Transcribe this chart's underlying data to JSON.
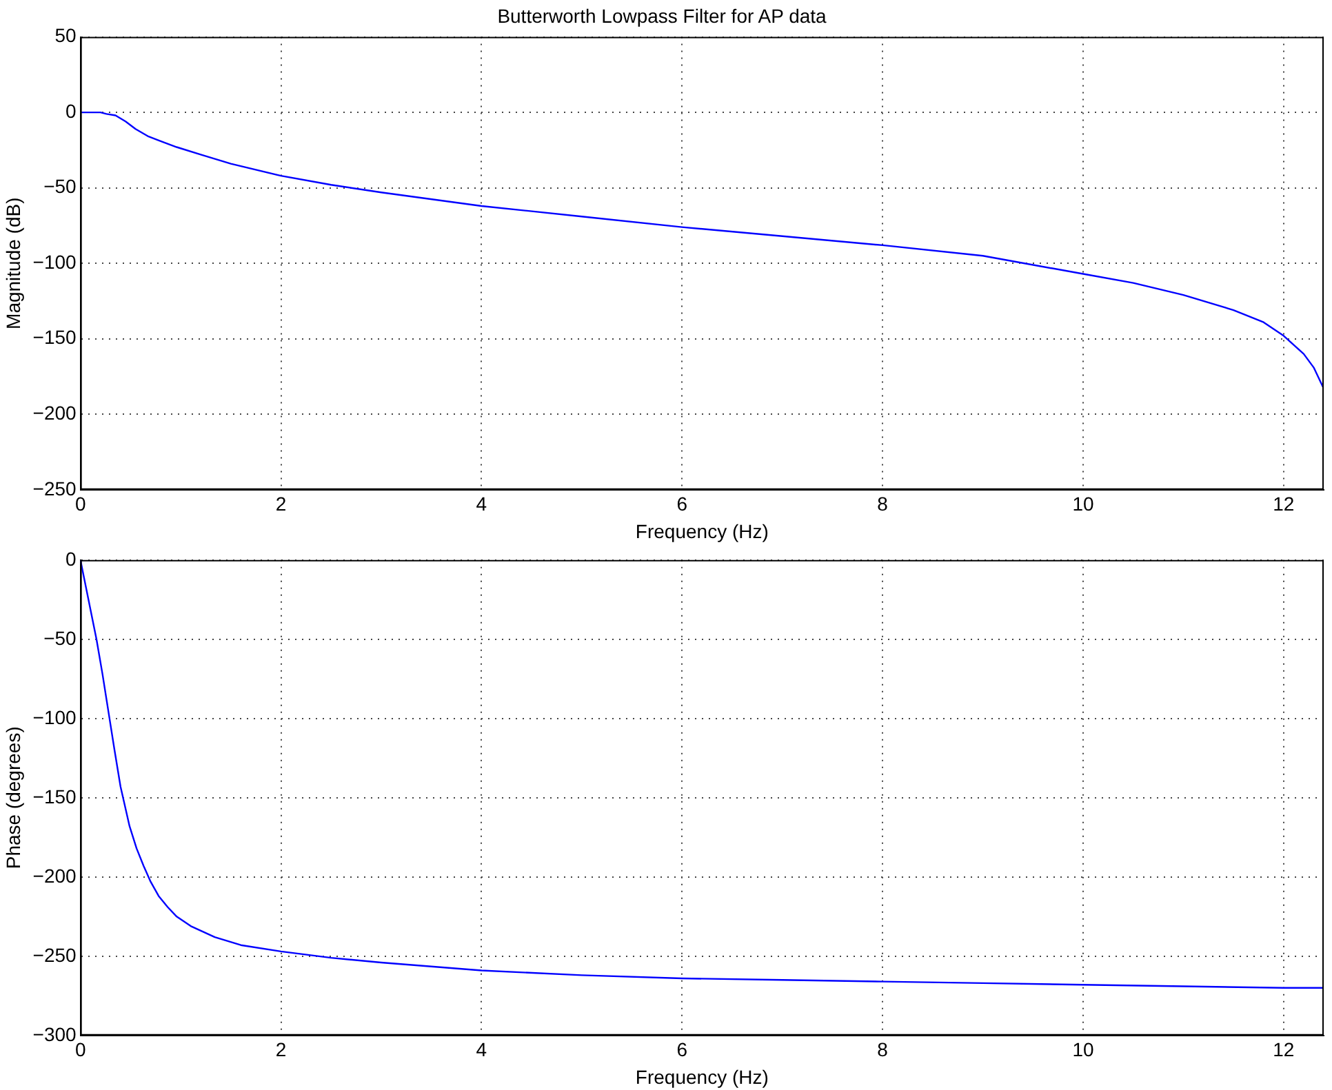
{
  "chart_data": [
    {
      "type": "line",
      "title": "Butterworth Lowpass Filter for AP data",
      "xlabel": "Frequency (Hz)",
      "ylabel": "Magnitude (dB)",
      "xlim": [
        0,
        12.4
      ],
      "xticks": [
        0,
        2,
        4,
        6,
        8,
        10,
        12
      ],
      "ylim": [
        -250,
        50
      ],
      "yticks": [
        -250,
        -200,
        -150,
        -100,
        -50,
        0,
        50
      ],
      "grid": true,
      "legend": false,
      "marker": "none",
      "line_style": "solid",
      "series": [
        {
          "color": "#0000ff",
          "x": [
            0,
            0.1,
            0.2,
            0.26,
            0.35,
            0.45,
            0.55,
            0.68,
            0.8,
            0.96,
            1.2,
            1.5,
            2,
            2.5,
            3,
            4,
            5,
            6,
            7,
            8,
            9,
            10,
            10.5,
            11,
            11.5,
            11.8,
            12,
            12.2,
            12.3,
            12.4
          ],
          "values": [
            0,
            0,
            0,
            -1,
            -2,
            -6,
            -11,
            -16,
            -19,
            -23,
            -28,
            -34,
            -42,
            -48,
            -53,
            -62,
            -69,
            -76,
            -82,
            -88,
            -95,
            -107,
            -113,
            -121,
            -131,
            -139,
            -148,
            -160,
            -169,
            -183
          ]
        }
      ]
    },
    {
      "type": "line",
      "xlabel": "Frequency (Hz)",
      "ylabel": "Phase (degrees)",
      "xlim": [
        0,
        12.4
      ],
      "xticks": [
        0,
        2,
        4,
        6,
        8,
        10,
        12
      ],
      "ylim": [
        -300,
        0
      ],
      "yticks": [
        -300,
        -250,
        -200,
        -150,
        -100,
        -50,
        0
      ],
      "grid": true,
      "legend": false,
      "marker": "none",
      "line_style": "solid",
      "series": [
        {
          "color": "#0000ff",
          "x": [
            0,
            0.08,
            0.16,
            0.22,
            0.28,
            0.34,
            0.4,
            0.49,
            0.56,
            0.63,
            0.7,
            0.78,
            0.87,
            0.96,
            1.1,
            1.34,
            1.6,
            2,
            2.5,
            3,
            4,
            5,
            6,
            7,
            8,
            9,
            10,
            11,
            12,
            12.4
          ],
          "values": [
            0,
            -25,
            -50,
            -72,
            -96,
            -120,
            -143,
            -168,
            -182,
            -193,
            -203,
            -212,
            -219,
            -225,
            -231,
            -238,
            -243,
            -247,
            -251,
            -254,
            -259,
            -262,
            -264,
            -265,
            -266,
            -267,
            -268,
            -269,
            -270,
            -270
          ]
        }
      ]
    }
  ]
}
